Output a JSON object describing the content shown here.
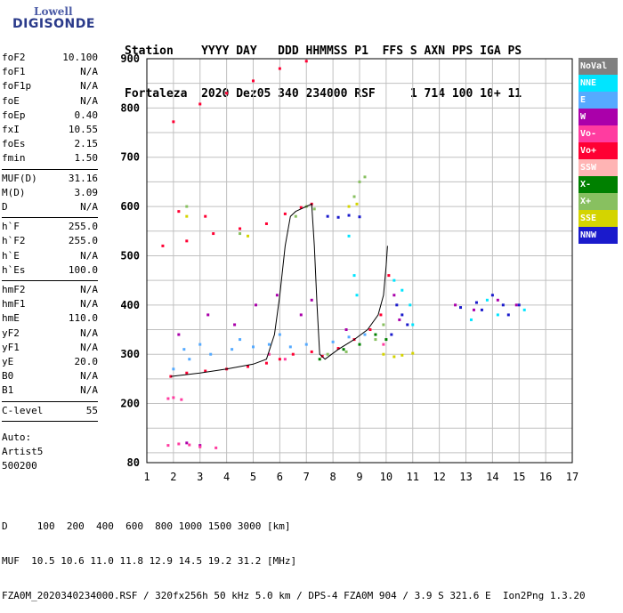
{
  "logo": {
    "top": "Lowell",
    "bottom": "DIGISONDE"
  },
  "header": {
    "line1": "Station    YYYY DAY   DDD HHMMSS P1  FFS S AXN PPS IGA PS",
    "line2": "Fortaleza  2020 Dez05 340 234000 RSF     1 714 100 10+ 11"
  },
  "params": [
    {
      "k": "foF2",
      "v": "10.100"
    },
    {
      "k": "foF1",
      "v": "N/A"
    },
    {
      "k": "foF1p",
      "v": "N/A"
    },
    {
      "k": "foE",
      "v": "N/A"
    },
    {
      "k": "foEp",
      "v": "0.40"
    },
    {
      "k": "fxI",
      "v": "10.55"
    },
    {
      "k": "foEs",
      "v": "2.15"
    },
    {
      "k": "fmin",
      "v": "1.50"
    },
    {
      "sep": true
    },
    {
      "k": "MUF(D)",
      "v": "31.16"
    },
    {
      "k": "M(D)",
      "v": "3.09"
    },
    {
      "k": "D",
      "v": "N/A"
    },
    {
      "sep": true
    },
    {
      "k": "h`F",
      "v": "255.0"
    },
    {
      "k": "h`F2",
      "v": "255.0"
    },
    {
      "k": "h`E",
      "v": "N/A"
    },
    {
      "k": "h`Es",
      "v": "100.0"
    },
    {
      "sep": true
    },
    {
      "k": "hmF2",
      "v": "N/A"
    },
    {
      "k": "hmF1",
      "v": "N/A"
    },
    {
      "k": "hmE",
      "v": "110.0"
    },
    {
      "k": "yF2",
      "v": "N/A"
    },
    {
      "k": "yF1",
      "v": "N/A"
    },
    {
      "k": "yE",
      "v": "20.0"
    },
    {
      "k": "B0",
      "v": "N/A"
    },
    {
      "k": "B1",
      "v": "N/A"
    },
    {
      "sep": true
    },
    {
      "k": "C-level",
      "v": "55"
    },
    {
      "sep": true
    }
  ],
  "auto": [
    "Auto:",
    "Artist5",
    "500200"
  ],
  "legend": [
    {
      "label": "NoVal",
      "color": "#808080",
      "text": "#ffffff"
    },
    {
      "label": "NNE",
      "color": "#00e5ff",
      "text": "#ffffff"
    },
    {
      "label": "E",
      "color": "#55aaff",
      "text": "#ffffff"
    },
    {
      "label": "W",
      "color": "#aa00aa",
      "text": "#ffffff"
    },
    {
      "label": "Vo-",
      "color": "#ff3ca0",
      "text": "#ffffff"
    },
    {
      "label": "Vo+",
      "color": "#ff0033",
      "text": "#ffffff"
    },
    {
      "label": "SSW",
      "color": "#ffb4b4",
      "text": "#ffffff"
    },
    {
      "label": "X-",
      "color": "#008000",
      "text": "#ffffff"
    },
    {
      "label": "X+",
      "color": "#88c060",
      "text": "#ffffff"
    },
    {
      "label": "SSE",
      "color": "#d4d400",
      "text": "#ffffff"
    },
    {
      "label": "NNW",
      "color": "#1a1acc",
      "text": "#ffffff"
    }
  ],
  "footer": {
    "line1": "D     100  200  400  600  800 1000 1500 3000 [km]",
    "line2": "MUF  10.5 10.6 11.0 11.8 12.9 14.5 19.2 31.2 [MHz]",
    "line3": "FZA0M_2020340234000.RSF / 320fx256h 50 kHz 5.0 km / DPS-4 FZA0M 904 / 3.9 S 321.6 E  Ion2Png 1.3.20"
  },
  "chart_data": {
    "type": "scatter",
    "xlim": [
      1,
      17
    ],
    "ylim": [
      80,
      900
    ],
    "x_ticks": [
      1,
      2,
      3,
      4,
      5,
      6,
      7,
      8,
      9,
      10,
      11,
      12,
      13,
      14,
      15,
      16,
      17
    ],
    "y_ticks": [
      80,
      200,
      300,
      400,
      500,
      600,
      700,
      800,
      900
    ],
    "grid": true,
    "traces": [
      {
        "name": "Vo+",
        "color": "#ff0033",
        "points": [
          [
            1.9,
            255
          ],
          [
            2.5,
            262
          ],
          [
            3.2,
            266
          ],
          [
            4,
            270
          ],
          [
            4.8,
            275
          ],
          [
            5.5,
            282
          ],
          [
            6.0,
            290
          ],
          [
            6.5,
            300
          ],
          [
            7.2,
            305
          ],
          [
            7.6,
            296
          ],
          [
            8.2,
            312
          ],
          [
            8.8,
            330
          ],
          [
            9.4,
            350
          ],
          [
            9.8,
            380
          ],
          [
            10.1,
            460
          ],
          [
            1.6,
            520
          ],
          [
            2.5,
            530
          ],
          [
            3.5,
            545
          ],
          [
            4.5,
            555
          ],
          [
            5.5,
            565
          ],
          [
            6.2,
            585
          ],
          [
            6.8,
            598
          ],
          [
            7.2,
            605
          ],
          [
            2,
            772
          ],
          [
            3,
            808
          ],
          [
            4,
            830
          ],
          [
            5,
            855
          ],
          [
            6,
            880
          ],
          [
            7,
            895
          ],
          [
            2.2,
            590
          ],
          [
            3.2,
            580
          ]
        ]
      },
      {
        "name": "E",
        "color": "#55aaff",
        "points": [
          [
            2,
            270
          ],
          [
            2.6,
            290
          ],
          [
            3.4,
            300
          ],
          [
            4.2,
            310
          ],
          [
            5,
            315
          ],
          [
            5.6,
            320
          ],
          [
            6.4,
            315
          ],
          [
            7,
            320
          ],
          [
            8,
            325
          ],
          [
            8.6,
            335
          ],
          [
            9.2,
            340
          ],
          [
            3,
            320
          ],
          [
            4.5,
            330
          ],
          [
            6,
            340
          ],
          [
            2.4,
            310
          ]
        ]
      },
      {
        "name": "W",
        "color": "#aa00aa",
        "points": [
          [
            2.2,
            340
          ],
          [
            3.3,
            380
          ],
          [
            4.3,
            360
          ],
          [
            5.1,
            400
          ],
          [
            5.9,
            420
          ],
          [
            6.8,
            380
          ],
          [
            7.2,
            410
          ],
          [
            8.5,
            350
          ],
          [
            10.3,
            420
          ],
          [
            10.5,
            370
          ],
          [
            12.6,
            400
          ],
          [
            13.3,
            390
          ],
          [
            14.2,
            410
          ],
          [
            14.9,
            400
          ],
          [
            2.5,
            120
          ],
          [
            3.0,
            115
          ]
        ]
      },
      {
        "name": "NNW",
        "color": "#1a1acc",
        "points": [
          [
            10.2,
            340
          ],
          [
            10.4,
            400
          ],
          [
            10.6,
            380
          ],
          [
            10.8,
            360
          ],
          [
            13.4,
            405
          ],
          [
            13.6,
            390
          ],
          [
            14.0,
            420
          ],
          [
            14.4,
            400
          ],
          [
            14.6,
            380
          ],
          [
            7.8,
            580
          ],
          [
            8.2,
            578
          ],
          [
            8.6,
            582
          ],
          [
            9.0,
            579
          ],
          [
            12.8,
            395
          ],
          [
            15.0,
            400
          ]
        ]
      },
      {
        "name": "NNE",
        "color": "#00e5ff",
        "points": [
          [
            10.3,
            450
          ],
          [
            10.6,
            430
          ],
          [
            10.9,
            400
          ],
          [
            13.2,
            370
          ],
          [
            13.8,
            410
          ],
          [
            14.2,
            380
          ],
          [
            15.2,
            390
          ],
          [
            8.6,
            540
          ],
          [
            8.8,
            460
          ],
          [
            8.9,
            420
          ],
          [
            11.0,
            360
          ]
        ]
      },
      {
        "name": "X+",
        "color": "#88c060",
        "points": [
          [
            6.6,
            580
          ],
          [
            7.0,
            600
          ],
          [
            7.3,
            595
          ],
          [
            8.8,
            620
          ],
          [
            9.0,
            650
          ],
          [
            9.2,
            660
          ],
          [
            7.8,
            300
          ],
          [
            8.5,
            305
          ],
          [
            9.6,
            330
          ],
          [
            9.9,
            360
          ],
          [
            2.5,
            600
          ],
          [
            4.5,
            545
          ]
        ]
      },
      {
        "name": "X-",
        "color": "#008000",
        "points": [
          [
            7.5,
            290
          ],
          [
            8.4,
            310
          ],
          [
            9.0,
            320
          ],
          [
            9.6,
            340
          ],
          [
            10.0,
            330
          ]
        ]
      },
      {
        "name": "SSE",
        "color": "#d4d400",
        "points": [
          [
            9.9,
            300
          ],
          [
            10.3,
            295
          ],
          [
            10.6,
            298
          ],
          [
            11.0,
            302
          ],
          [
            2.5,
            580
          ],
          [
            4.8,
            540
          ],
          [
            8.6,
            600
          ],
          [
            8.9,
            605
          ]
        ]
      },
      {
        "name": "Vo-",
        "color": "#ff3ca0",
        "points": [
          [
            1.8,
            210
          ],
          [
            2.0,
            212
          ],
          [
            2.3,
            208
          ],
          [
            1.8,
            115
          ],
          [
            2.2,
            118
          ],
          [
            2.6,
            116
          ],
          [
            3.0,
            112
          ],
          [
            3.6,
            110
          ],
          [
            5.6,
            300
          ],
          [
            6.2,
            290
          ],
          [
            9.9,
            320
          ]
        ]
      }
    ],
    "profile": [
      [
        1.9,
        255
      ],
      [
        3,
        262
      ],
      [
        4,
        270
      ],
      [
        5,
        280
      ],
      [
        5.5,
        290
      ],
      [
        5.8,
        340
      ],
      [
        6,
        420
      ],
      [
        6.2,
        520
      ],
      [
        6.4,
        580
      ],
      [
        6.6,
        590
      ],
      [
        7.0,
        600
      ],
      [
        7.2,
        605
      ],
      [
        7.3,
        520
      ],
      [
        7.4,
        400
      ],
      [
        7.5,
        300
      ],
      [
        7.7,
        290
      ],
      [
        8.2,
        310
      ],
      [
        8.8,
        330
      ],
      [
        9.3,
        350
      ],
      [
        9.7,
        380
      ],
      [
        9.9,
        420
      ],
      [
        10.0,
        480
      ],
      [
        10.05,
        520
      ]
    ]
  }
}
